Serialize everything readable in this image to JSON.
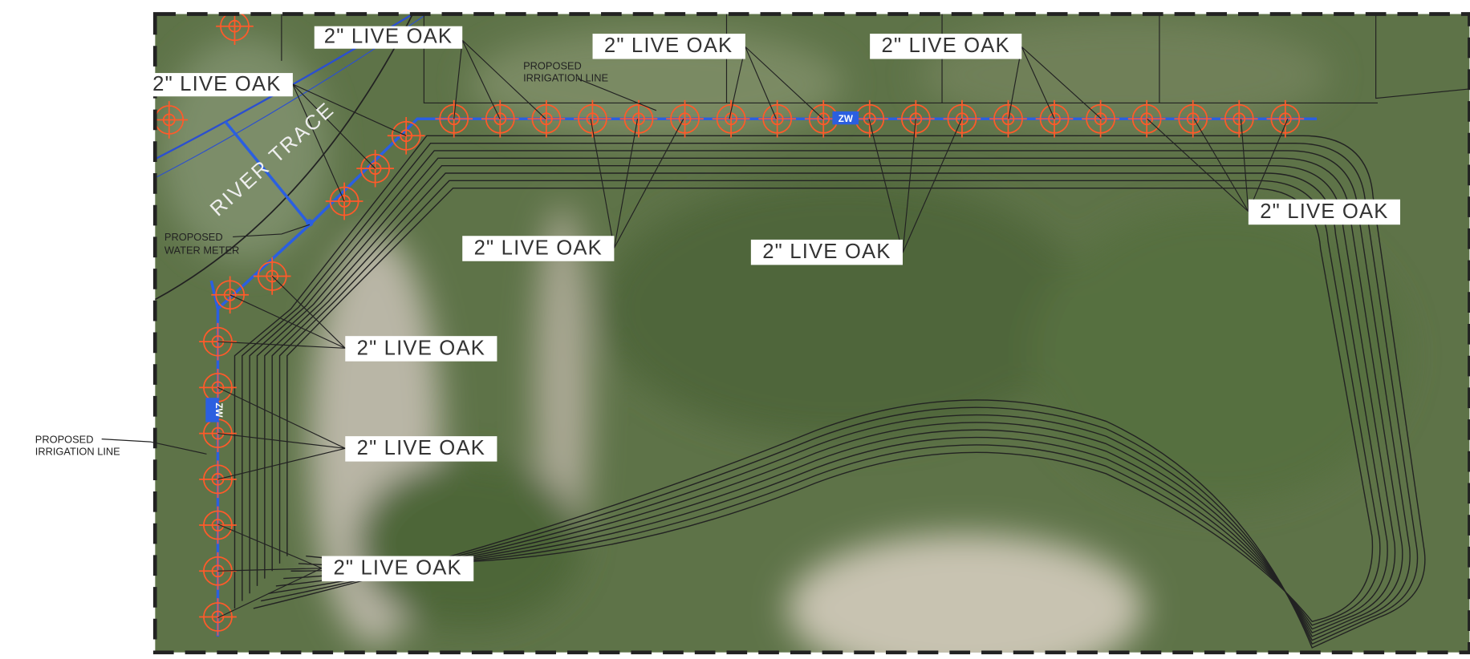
{
  "labels": {
    "tree_callouts": [
      "2\" LIVE OAK",
      "2\" LIVE OAK",
      "2\" LIVE OAK",
      "2\" LIVE OAK",
      "2\" LIVE OAK",
      "2\" LIVE OAK",
      "2\" LIVE OAK",
      "2\" LIVE OAK",
      "2\" LIVE OAK",
      "2\" LIVE OAK"
    ],
    "irrigation_notes": [
      [
        "PROPOSED",
        "IRRIGATION LINE"
      ],
      [
        "PROPOSED",
        "IRRIGATION LINE"
      ]
    ],
    "water_meter": [
      "PROPOSED",
      "WATER METER"
    ],
    "street": "RIVER TRACE",
    "meter_tags": [
      "ZW",
      "ZW"
    ]
  }
}
